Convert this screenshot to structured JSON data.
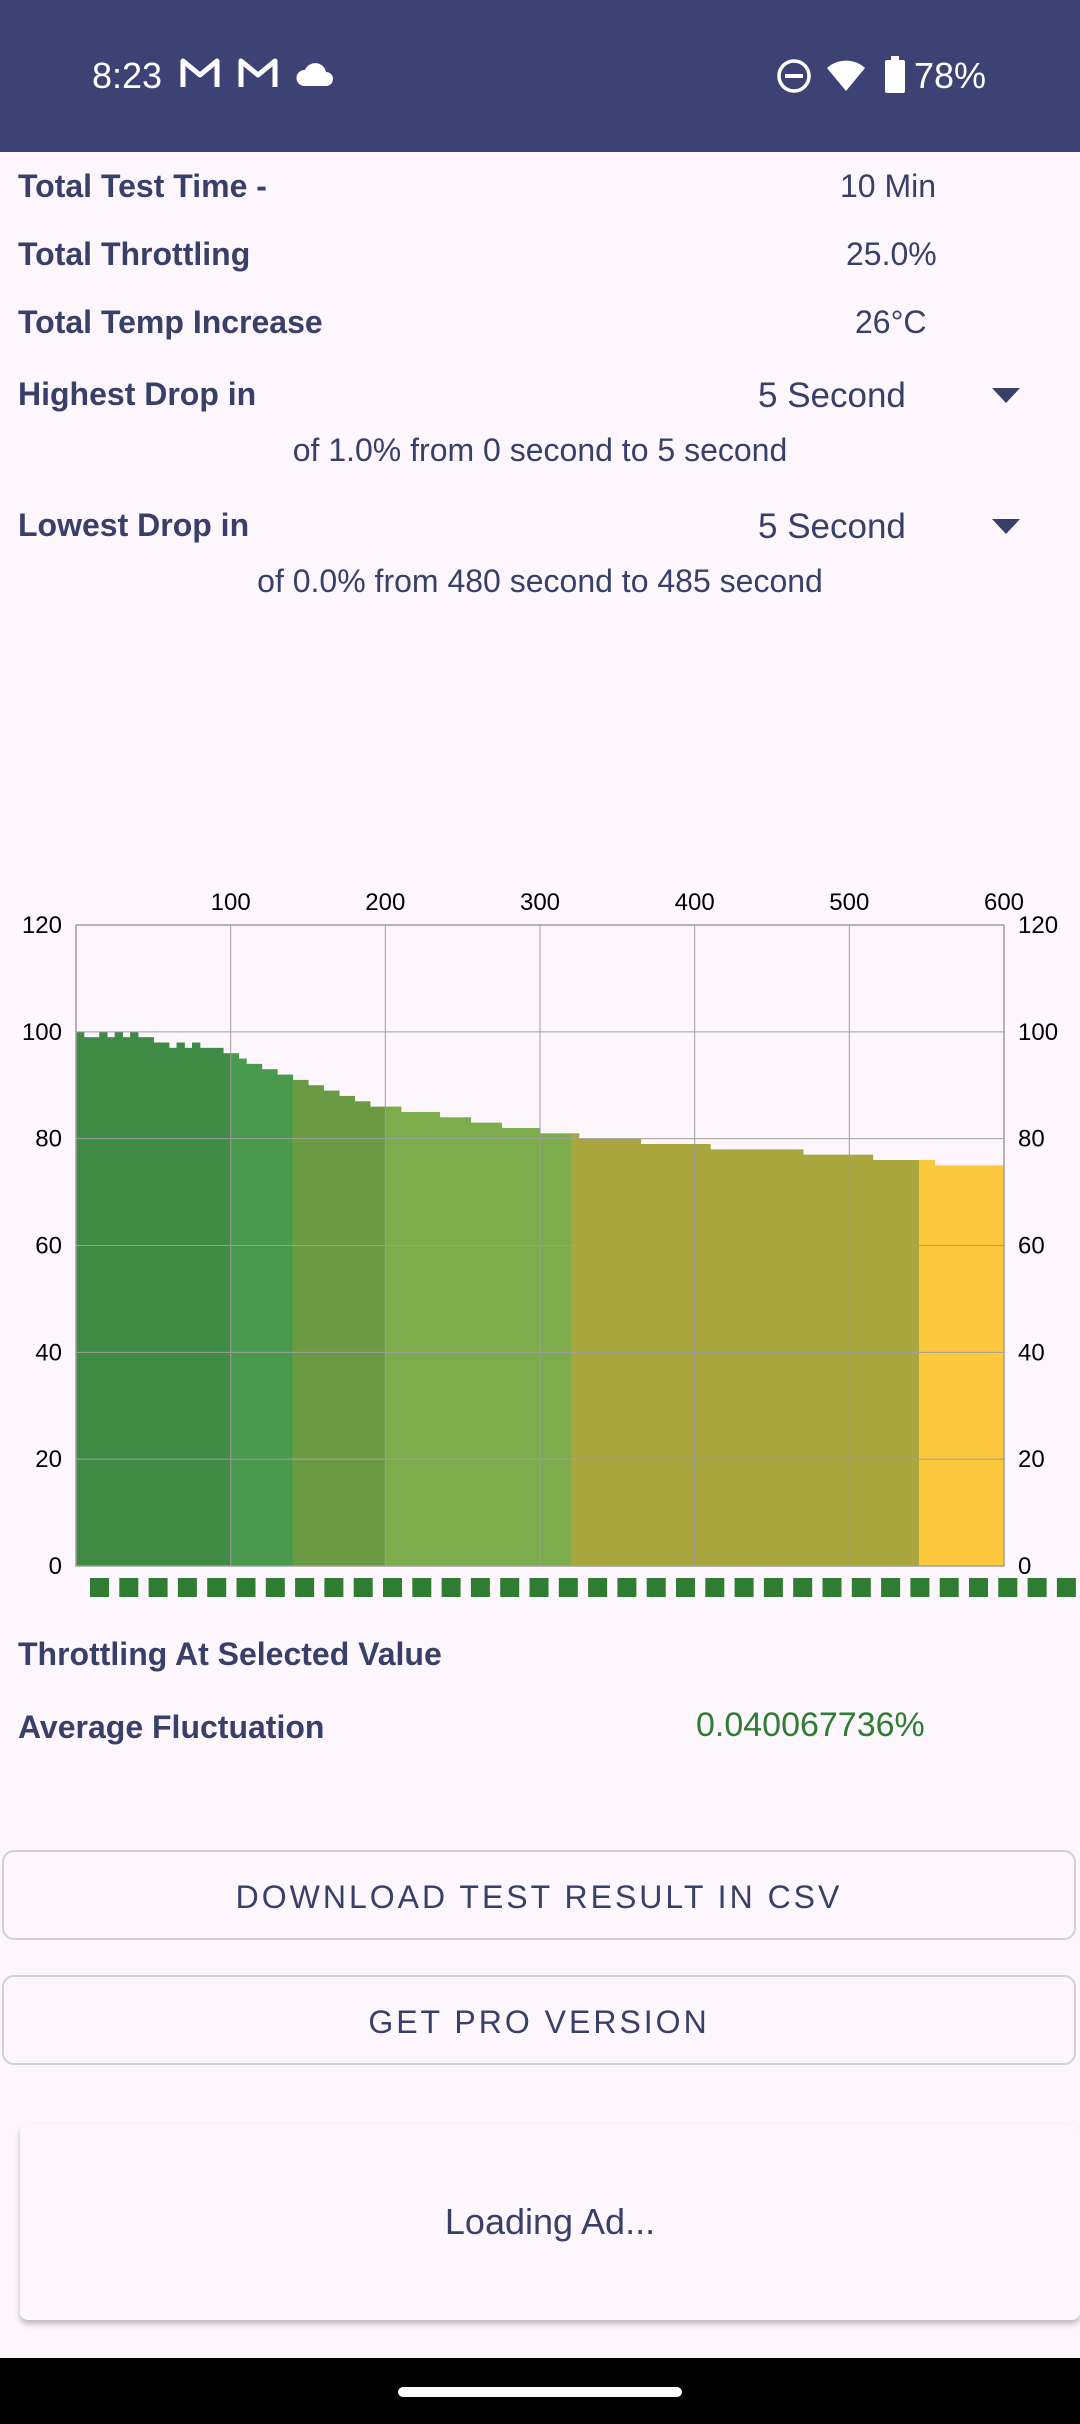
{
  "status_bar": {
    "time": "8:23",
    "icons": [
      "gmail-icon",
      "gmail-icon",
      "cloud-icon",
      "do-not-disturb-icon",
      "wifi-icon",
      "battery-icon"
    ],
    "battery": "78%"
  },
  "summary": {
    "total_test_time_label": "Total Test Time -",
    "total_test_time_value": "10 Min",
    "total_throttling_label": "Total Throttling",
    "total_throttling_value": "25.0%",
    "total_temp_label": "Total Temp Increase",
    "total_temp_value": "26°C"
  },
  "highest_drop": {
    "label": "Highest Drop in",
    "interval": "5 Second",
    "detail": "of 1.0% from 0 second to  5 second"
  },
  "lowest_drop": {
    "label": "Lowest Drop in",
    "interval": "5 Second",
    "detail": "of 0.0% from 480 second to  485 second"
  },
  "chart_data": {
    "type": "bar",
    "title": "",
    "xlabel": "",
    "ylabel": "",
    "x_ticks": [
      "100",
      "200",
      "300",
      "400",
      "500",
      "600"
    ],
    "y_ticks": [
      "0",
      "20",
      "40",
      "60",
      "80",
      "100",
      "120"
    ],
    "xlim": [
      0,
      600
    ],
    "ylim": [
      0,
      120
    ],
    "grid": true,
    "bar_interval_seconds": 5,
    "values": [
      100,
      99,
      99,
      100,
      99,
      100,
      99,
      100,
      99,
      99,
      98,
      98,
      97,
      98,
      97,
      98,
      97,
      97,
      97,
      96,
      96,
      95,
      94,
      94,
      93,
      93,
      92,
      92,
      91,
      91,
      90,
      90,
      89,
      89,
      88,
      88,
      87,
      87,
      86,
      86,
      86,
      86,
      85,
      85,
      85,
      85,
      85,
      84,
      84,
      84,
      84,
      83,
      83,
      83,
      83,
      82,
      82,
      82,
      82,
      82,
      81,
      81,
      81,
      81,
      81,
      80,
      80,
      80,
      80,
      80,
      80,
      80,
      80,
      79,
      79,
      79,
      79,
      79,
      79,
      79,
      79,
      79,
      78,
      78,
      78,
      78,
      78,
      78,
      78,
      78,
      78,
      78,
      78,
      78,
      77,
      77,
      77,
      77,
      77,
      77,
      77,
      77,
      77,
      76,
      76,
      76,
      76,
      76,
      76,
      76,
      76,
      75,
      75,
      75,
      75,
      75,
      75,
      75,
      75,
      75
    ],
    "segment_colors": [
      "#3f8a44",
      "#4a9a4e",
      "#6a9b44",
      "#7cac4c",
      "#a8a63c",
      "#fdc83d"
    ],
    "marker_color": "#2e7d32"
  },
  "selected": {
    "throttling_label": "Throttling At Selected Value",
    "avg_fluct_label": "Average Fluctuation",
    "avg_fluct_value": "0.040067736%",
    "avg_fluct_color": "#2e7d32"
  },
  "buttons": {
    "download_csv": "DOWNLOAD TEST RESULT IN CSV",
    "get_pro": "GET PRO VERSION"
  },
  "ad": {
    "loading_text": "Loading Ad..."
  }
}
